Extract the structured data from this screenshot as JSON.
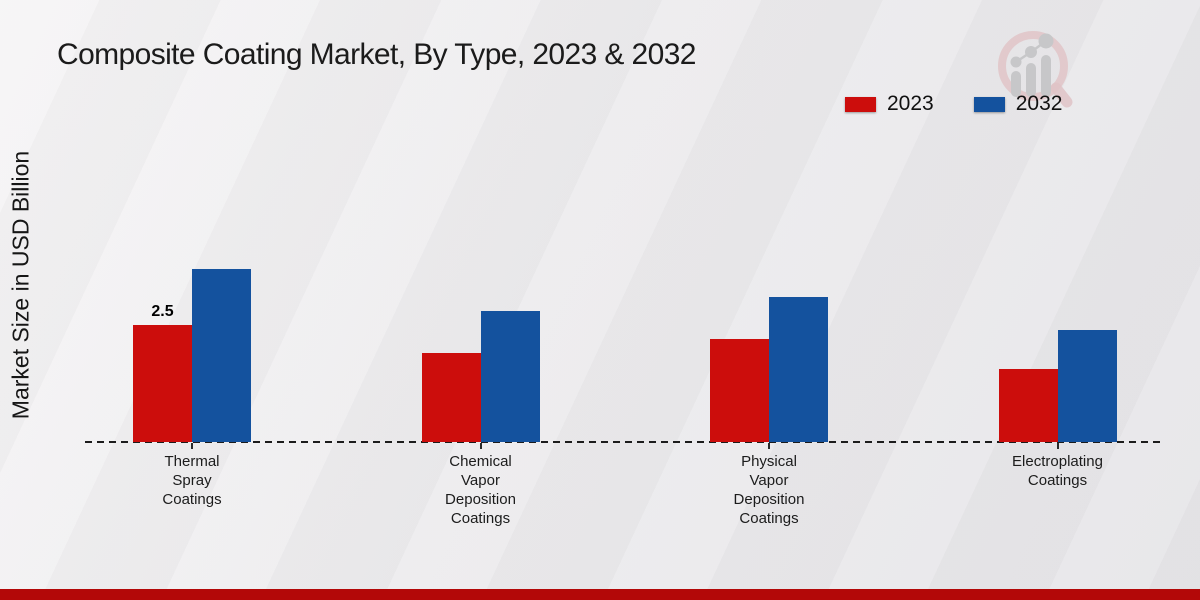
{
  "page": {
    "title": "Composite Coating Market, By Type, 2023 & 2032",
    "footer_bar_color": "#b30808",
    "accent_red": "#cc0d0c",
    "accent_blue": "#14529e"
  },
  "legend": {
    "items": [
      {
        "label": "2023",
        "color": "#cc0d0c"
      },
      {
        "label": "2032",
        "color": "#14529e"
      }
    ]
  },
  "chart_data": {
    "type": "bar",
    "title": "Composite Coating Market, By Type, 2023 & 2032",
    "xlabel": "",
    "ylabel": "Market Size in USD Billion",
    "categories": [
      [
        "Thermal",
        "Spray",
        "Coatings"
      ],
      [
        "Chemical",
        "Vapor",
        "Deposition",
        "Coatings"
      ],
      [
        "Physical",
        "Vapor",
        "Deposition",
        "Coatings"
      ],
      [
        "Electroplating",
        "Coatings"
      ]
    ],
    "series": [
      {
        "name": "2023",
        "color": "#cc0d0c",
        "values": [
          2.5,
          1.9,
          2.2,
          1.55
        ],
        "data_labels": [
          "2.5",
          "",
          "",
          ""
        ]
      },
      {
        "name": "2032",
        "color": "#14529e",
        "values": [
          3.7,
          2.8,
          3.1,
          2.4
        ],
        "data_labels": [
          "",
          "",
          "",
          ""
        ]
      }
    ],
    "ylim": [
      0,
      4
    ],
    "grid": false,
    "baseline_style": "dashed",
    "legend_position": "top-right"
  }
}
